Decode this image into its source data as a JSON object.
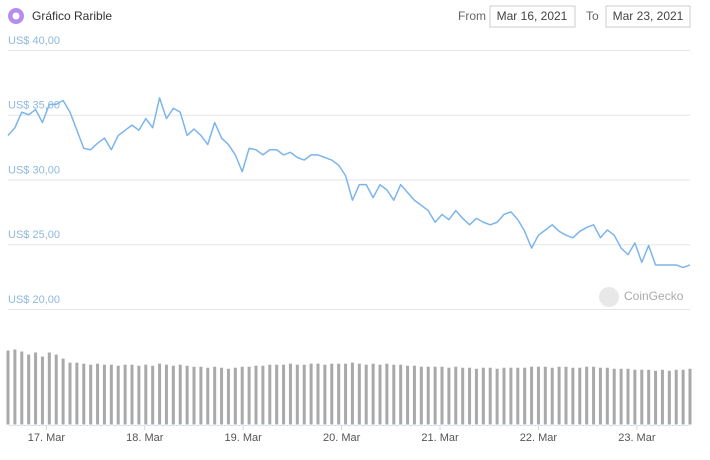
{
  "chart_data": {
    "type": "line",
    "title": "Gráfico Rarible",
    "from_label": "From",
    "from_date": "Mar 16, 2021",
    "to_label": "To",
    "to_date": "Mar 23, 2021",
    "watermark": "CoinGecko",
    "grid": true,
    "ylim": [
      20,
      40
    ],
    "yticks": [
      {
        "value": 20,
        "label": "US$ 20,00"
      },
      {
        "value": 25,
        "label": "US$ 25,00"
      },
      {
        "value": 30,
        "label": "US$ 30,00"
      },
      {
        "value": 35,
        "label": "US$ 35,00"
      },
      {
        "value": 40,
        "label": "US$ 40,00"
      }
    ],
    "xlim": [
      16.61,
      23.54
    ],
    "xticks": [
      {
        "value": 17,
        "label": "17. Mar"
      },
      {
        "value": 18,
        "label": "18. Mar"
      },
      {
        "value": 19,
        "label": "19. Mar"
      },
      {
        "value": 20,
        "label": "20. Mar"
      },
      {
        "value": 21,
        "label": "21. Mar"
      },
      {
        "value": 22,
        "label": "22. Mar"
      },
      {
        "value": 23,
        "label": "23. Mar"
      }
    ],
    "x": [
      16.61,
      16.68,
      16.75,
      16.82,
      16.89,
      16.96,
      17.03,
      17.1,
      17.17,
      17.24,
      17.31,
      17.38,
      17.45,
      17.52,
      17.59,
      17.66,
      17.73,
      17.8,
      17.87,
      17.94,
      18.01,
      18.08,
      18.15,
      18.22,
      18.29,
      18.36,
      18.43,
      18.5,
      18.57,
      18.64,
      18.71,
      18.78,
      18.85,
      18.92,
      18.99,
      19.06,
      19.13,
      19.2,
      19.27,
      19.34,
      19.41,
      19.48,
      19.55,
      19.62,
      19.69,
      19.76,
      19.83,
      19.9,
      19.97,
      20.04,
      20.11,
      20.18,
      20.25,
      20.32,
      20.39,
      20.46,
      20.53,
      20.6,
      20.67,
      20.74,
      20.81,
      20.88,
      20.95,
      21.02,
      21.09,
      21.16,
      21.23,
      21.3,
      21.37,
      21.44,
      21.51,
      21.58,
      21.65,
      21.72,
      21.79,
      21.86,
      21.93,
      22.0,
      22.07,
      22.14,
      22.21,
      22.28,
      22.35,
      22.42,
      22.49,
      22.56,
      22.63,
      22.7,
      22.77,
      22.84,
      22.91,
      22.98,
      23.05,
      23.12,
      23.19,
      23.26,
      23.33,
      23.4,
      23.47,
      23.54
    ],
    "series": [
      {
        "color": "#7cb5ec",
        "values": [
          33.4,
          34.0,
          35.2,
          35.0,
          35.4,
          34.4,
          35.8,
          35.8,
          36.1,
          35.2,
          33.8,
          32.4,
          32.3,
          32.8,
          33.2,
          32.3,
          33.4,
          33.8,
          34.2,
          33.8,
          34.7,
          34.0,
          36.3,
          34.7,
          35.5,
          35.2,
          33.4,
          33.9,
          33.4,
          32.7,
          34.4,
          33.2,
          32.7,
          31.9,
          30.6,
          32.4,
          32.3,
          31.9,
          32.3,
          32.3,
          31.9,
          32.1,
          31.7,
          31.5,
          31.9,
          31.9,
          31.7,
          31.5,
          31.1,
          30.3,
          28.4,
          29.6,
          29.6,
          28.6,
          29.6,
          29.2,
          28.4,
          29.6,
          29.0,
          28.4,
          28.0,
          27.6,
          26.7,
          27.3,
          26.9,
          27.6,
          27.0,
          26.5,
          27.0,
          26.7,
          26.5,
          26.7,
          27.3,
          27.5,
          26.9,
          26.0,
          24.7,
          25.7,
          26.1,
          26.5,
          26.0,
          25.7,
          25.5,
          26.0,
          26.3,
          26.5,
          25.5,
          26.1,
          25.7,
          24.7,
          24.2,
          25.1,
          23.6,
          24.9,
          23.4,
          23.4,
          23.4,
          23.4,
          23.2,
          23.4
        ]
      }
    ],
    "volume": {
      "color": "#a9a9a9",
      "values": [
        74,
        75,
        73,
        70,
        72,
        68,
        72,
        70,
        66,
        62,
        62,
        61,
        60,
        61,
        60,
        60,
        59,
        60,
        60,
        59,
        60,
        59,
        61,
        60,
        59,
        60,
        59,
        58,
        58,
        57,
        58,
        57,
        56,
        57,
        58,
        58,
        59,
        59,
        60,
        60,
        60,
        61,
        60,
        60,
        61,
        61,
        60,
        61,
        61,
        61,
        62,
        61,
        60,
        61,
        60,
        61,
        60,
        60,
        59,
        59,
        58,
        58,
        58,
        58,
        57,
        58,
        57,
        57,
        56,
        57,
        57,
        56,
        57,
        57,
        57,
        57,
        58,
        58,
        58,
        57,
        58,
        58,
        57,
        57,
        58,
        58,
        57,
        57,
        56,
        56,
        56,
        55,
        55,
        55,
        54,
        55,
        54,
        55,
        55,
        56
      ]
    }
  }
}
